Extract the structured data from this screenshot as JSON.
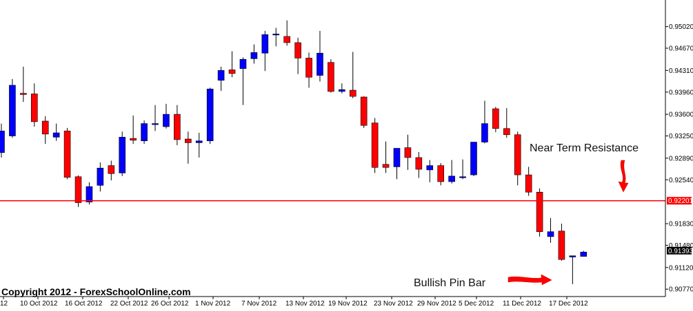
{
  "chart_data": {
    "type": "candlestick",
    "title": "",
    "xlabel": "",
    "ylabel": "",
    "ylim": [
      0.9065,
      0.9545
    ],
    "grid": false,
    "y_ticks": [
      "0.95020",
      "0.94670",
      "0.94310",
      "0.93960",
      "0.93600",
      "0.93250",
      "0.92890",
      "0.92540",
      "0.92201",
      "0.91830",
      "0.91480",
      "0.91393",
      "0.91120",
      "0.90770"
    ],
    "x_tick_labels": [
      "12",
      "10 Oct 2012",
      "16 Oct 2012",
      "22 Oct 2012",
      "26 Oct 2012",
      "1 Nov 2012",
      "7 Nov 2012",
      "13 Nov 2012",
      "19 Nov 2012",
      "23 Nov 2012",
      "29 Nov 2012",
      "5 Dec 2012",
      "11 Dec 2012",
      "17 Dec 2012"
    ],
    "colors": {
      "up": "#0000ff",
      "down": "#ff0000",
      "resistance": "#ff0000",
      "annotation_arrow": "#ff0000"
    },
    "candles": [
      {
        "o": 0.9298,
        "h": 0.9345,
        "l": 0.929,
        "c": 0.9333
      },
      {
        "o": 0.9325,
        "h": 0.9417,
        "l": 0.9322,
        "c": 0.9407
      },
      {
        "o": 0.9394,
        "h": 0.9437,
        "l": 0.938,
        "c": 0.9392
      },
      {
        "o": 0.9393,
        "h": 0.941,
        "l": 0.934,
        "c": 0.9348
      },
      {
        "o": 0.9349,
        "h": 0.9357,
        "l": 0.9312,
        "c": 0.9328
      },
      {
        "o": 0.9323,
        "h": 0.9345,
        "l": 0.9317,
        "c": 0.933
      },
      {
        "o": 0.9333,
        "h": 0.9338,
        "l": 0.9255,
        "c": 0.9258
      },
      {
        "o": 0.9259,
        "h": 0.9261,
        "l": 0.921,
        "c": 0.9217
      },
      {
        "o": 0.9218,
        "h": 0.925,
        "l": 0.9214,
        "c": 0.9243
      },
      {
        "o": 0.9245,
        "h": 0.9282,
        "l": 0.9235,
        "c": 0.9273
      },
      {
        "o": 0.9277,
        "h": 0.9285,
        "l": 0.9253,
        "c": 0.9264
      },
      {
        "o": 0.9265,
        "h": 0.9332,
        "l": 0.926,
        "c": 0.9323
      },
      {
        "o": 0.9321,
        "h": 0.9358,
        "l": 0.9312,
        "c": 0.9318
      },
      {
        "o": 0.9317,
        "h": 0.935,
        "l": 0.9312,
        "c": 0.9345
      },
      {
        "o": 0.9345,
        "h": 0.9375,
        "l": 0.9333,
        "c": 0.9345
      },
      {
        "o": 0.934,
        "h": 0.9377,
        "l": 0.9337,
        "c": 0.936
      },
      {
        "o": 0.936,
        "h": 0.9375,
        "l": 0.931,
        "c": 0.9319
      },
      {
        "o": 0.932,
        "h": 0.9332,
        "l": 0.928,
        "c": 0.9314
      },
      {
        "o": 0.9314,
        "h": 0.933,
        "l": 0.929,
        "c": 0.9317
      },
      {
        "o": 0.9317,
        "h": 0.9403,
        "l": 0.9312,
        "c": 0.9401
      },
      {
        "o": 0.9415,
        "h": 0.9437,
        "l": 0.9398,
        "c": 0.9431
      },
      {
        "o": 0.9432,
        "h": 0.9462,
        "l": 0.942,
        "c": 0.9426
      },
      {
        "o": 0.9434,
        "h": 0.9452,
        "l": 0.9375,
        "c": 0.9449
      },
      {
        "o": 0.945,
        "h": 0.9473,
        "l": 0.9442,
        "c": 0.946
      },
      {
        "o": 0.9459,
        "h": 0.9495,
        "l": 0.943,
        "c": 0.9489
      },
      {
        "o": 0.9489,
        "h": 0.95,
        "l": 0.947,
        "c": 0.949
      },
      {
        "o": 0.9486,
        "h": 0.9512,
        "l": 0.9471,
        "c": 0.9476
      },
      {
        "o": 0.9476,
        "h": 0.9484,
        "l": 0.9425,
        "c": 0.9451
      },
      {
        "o": 0.9451,
        "h": 0.946,
        "l": 0.9403,
        "c": 0.942
      },
      {
        "o": 0.9423,
        "h": 0.9495,
        "l": 0.9413,
        "c": 0.9459
      },
      {
        "o": 0.9444,
        "h": 0.9449,
        "l": 0.9395,
        "c": 0.9397
      },
      {
        "o": 0.9397,
        "h": 0.941,
        "l": 0.9394,
        "c": 0.94
      },
      {
        "o": 0.9399,
        "h": 0.9461,
        "l": 0.9386,
        "c": 0.9389
      },
      {
        "o": 0.9388,
        "h": 0.9389,
        "l": 0.9338,
        "c": 0.9342
      },
      {
        "o": 0.9346,
        "h": 0.9354,
        "l": 0.9265,
        "c": 0.9274
      },
      {
        "o": 0.9279,
        "h": 0.9316,
        "l": 0.9265,
        "c": 0.9274
      },
      {
        "o": 0.9275,
        "h": 0.9305,
        "l": 0.9255,
        "c": 0.9305
      },
      {
        "o": 0.9306,
        "h": 0.9327,
        "l": 0.927,
        "c": 0.929
      },
      {
        "o": 0.929,
        "h": 0.9299,
        "l": 0.9257,
        "c": 0.9271
      },
      {
        "o": 0.927,
        "h": 0.9286,
        "l": 0.925,
        "c": 0.9277
      },
      {
        "o": 0.9277,
        "h": 0.9281,
        "l": 0.9245,
        "c": 0.9251
      },
      {
        "o": 0.9251,
        "h": 0.9286,
        "l": 0.9248,
        "c": 0.926
      },
      {
        "o": 0.9259,
        "h": 0.9287,
        "l": 0.9255,
        "c": 0.9259
      },
      {
        "o": 0.9262,
        "h": 0.9315,
        "l": 0.926,
        "c": 0.9315
      },
      {
        "o": 0.9315,
        "h": 0.9382,
        "l": 0.9313,
        "c": 0.9345
      },
      {
        "o": 0.9369,
        "h": 0.9372,
        "l": 0.9331,
        "c": 0.9337
      },
      {
        "o": 0.9337,
        "h": 0.937,
        "l": 0.9322,
        "c": 0.9327
      },
      {
        "o": 0.9327,
        "h": 0.9332,
        "l": 0.9245,
        "c": 0.9262
      },
      {
        "o": 0.9262,
        "h": 0.9275,
        "l": 0.9228,
        "c": 0.9234
      },
      {
        "o": 0.9234,
        "h": 0.924,
        "l": 0.9162,
        "c": 0.917
      },
      {
        "o": 0.9162,
        "h": 0.9192,
        "l": 0.9152,
        "c": 0.917
      },
      {
        "o": 0.9171,
        "h": 0.9183,
        "l": 0.9123,
        "c": 0.9125
      },
      {
        "o": 0.9129,
        "h": 0.913,
        "l": 0.9085,
        "c": 0.9131
      },
      {
        "o": 0.913,
        "h": 0.9139,
        "l": 0.913,
        "c": 0.9137
      }
    ],
    "resistance_level": 0.92201,
    "current_price": 0.91393,
    "current_price_label": "0.91393",
    "resistance_label": "0.92201",
    "annotations": [
      "Near Term Resistance",
      "Bullish Pin Bar"
    ],
    "copyright": "Copyright 2012 - ForexSchoolOnline.com"
  }
}
